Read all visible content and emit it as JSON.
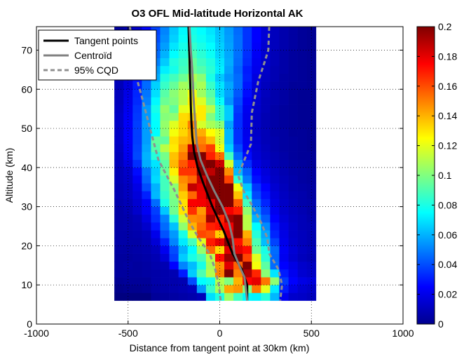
{
  "chart_data": {
    "type": "heatmap",
    "title": "O3 OFL Mid-latitude Horizontal AK",
    "xlabel": "Distance from tangent point at 30km (km)",
    "ylabel": "Altitude (km)",
    "xlim": [
      -1000,
      1000
    ],
    "ylim": [
      0,
      76
    ],
    "xticks": [
      -1000,
      -500,
      0,
      500,
      1000
    ],
    "yticks": [
      0,
      10,
      20,
      30,
      40,
      50,
      60,
      70
    ],
    "x_bin_edges": [
      -575,
      -525,
      -475,
      -425,
      -375,
      -325,
      -275,
      -225,
      -175,
      -125,
      -75,
      -25,
      25,
      75,
      125,
      175,
      225,
      275,
      325,
      375,
      425,
      475,
      525
    ],
    "y_bin_edges": [
      6,
      8,
      10,
      12,
      14,
      16,
      18,
      20,
      22,
      24,
      26,
      28,
      30,
      32,
      34,
      36,
      38,
      40,
      42,
      44,
      46,
      48,
      50,
      52,
      54,
      56,
      58,
      60,
      62,
      64,
      66,
      68,
      70,
      72,
      74,
      76
    ],
    "heatmap_note": "values are AK weights per (x bin, altitude bin), rows ordered from lowest altitude bin upward",
    "colorbar": {
      "colormap": "jet",
      "range": [
        0,
        0.2
      ],
      "ticks": [
        "0",
        "0.02",
        "0.04",
        "0.06",
        "0.08",
        "0.1",
        "0.12",
        "0.14",
        "0.16",
        "0.18",
        "0.2"
      ]
    },
    "legend": {
      "position": "top-left",
      "entries": [
        {
          "label": "Tangent points",
          "color": "#000000",
          "style": "solid"
        },
        {
          "label": "Centroïd",
          "color": "#808080",
          "style": "solid"
        },
        {
          "label": "95% CQD",
          "color": "#909090",
          "style": "dashed"
        }
      ]
    },
    "series": [
      {
        "name": "Tangent points",
        "x": [
          -170,
          -168,
          -165,
          -163,
          -160,
          -158,
          -155,
          -150,
          -140,
          -120,
          -90,
          -40,
          20,
          70,
          120,
          150,
          150
        ],
        "y": [
          76,
          72,
          68,
          64,
          60,
          56,
          52,
          48,
          44,
          40,
          36,
          30,
          24,
          18,
          14,
          10,
          6
        ]
      },
      {
        "name": "Centroïd",
        "x": [
          -165,
          -158,
          -150,
          -143,
          -135,
          -125,
          -105,
          -70,
          -30,
          15,
          50,
          70,
          80,
          115,
          135,
          140,
          150
        ],
        "y": [
          76,
          70,
          65,
          58,
          52,
          46,
          42,
          38,
          34,
          30,
          26,
          22,
          18,
          14,
          12,
          10,
          6
        ]
      },
      {
        "name": "95% CQD lower",
        "x": [
          -490,
          -475,
          -460,
          -425,
          -380,
          -335,
          -290,
          -245,
          -205,
          -165,
          -115,
          -55,
          -25,
          -5,
          5
        ],
        "y": [
          76,
          70,
          64,
          58,
          50,
          42,
          38,
          34,
          30,
          26,
          22,
          18,
          14,
          10,
          6
        ]
      },
      {
        "name": "95% CQD upper",
        "x": [
          270,
          265,
          245,
          210,
          175,
          170,
          100,
          130,
          180,
          225,
          260,
          270,
          320,
          340,
          330
        ],
        "y": [
          76,
          70,
          67,
          62,
          54,
          46,
          38,
          34,
          30,
          26,
          22,
          18,
          14,
          10,
          6
        ]
      }
    ],
    "heatmap_values": [
      [
        0.0,
        0.0,
        0.0,
        0.0,
        0.005,
        0.006,
        0.007,
        0.008,
        0.009,
        0.011,
        0.069,
        0.081,
        0.106,
        0.087,
        0.074,
        0.073,
        0.082,
        0.061,
        0.022,
        0.015,
        0.014,
        0.012
      ],
      [
        0.002,
        0.003,
        0.003,
        0.004,
        0.007,
        0.008,
        0.009,
        0.01,
        0.012,
        0.055,
        0.086,
        0.108,
        0.142,
        0.146,
        0.101,
        0.152,
        0.12,
        0.071,
        0.03,
        0.02,
        0.016,
        0.014
      ],
      [
        0.004,
        0.005,
        0.005,
        0.005,
        0.008,
        0.009,
        0.009,
        0.01,
        0.04,
        0.075,
        0.079,
        0.11,
        0.1,
        0.14,
        0.175,
        0.18,
        0.152,
        0.103,
        0.036,
        0.025,
        0.02,
        0.018
      ],
      [
        0.006,
        0.006,
        0.006,
        0.007,
        0.008,
        0.009,
        0.01,
        0.03,
        0.065,
        0.09,
        0.11,
        0.15,
        0.2,
        0.15,
        0.19,
        0.168,
        0.102,
        0.07,
        0.03,
        0.022,
        0.016,
        0.014
      ],
      [
        0.006,
        0.007,
        0.006,
        0.007,
        0.009,
        0.01,
        0.025,
        0.051,
        0.062,
        0.08,
        0.107,
        0.146,
        0.181,
        0.156,
        0.2,
        0.123,
        0.093,
        0.046,
        0.025,
        0.02,
        0.015,
        0.013
      ],
      [
        0.006,
        0.006,
        0.007,
        0.008,
        0.01,
        0.017,
        0.037,
        0.065,
        0.08,
        0.089,
        0.111,
        0.173,
        0.195,
        0.2,
        0.162,
        0.119,
        0.083,
        0.045,
        0.022,
        0.016,
        0.012,
        0.01
      ],
      [
        0.007,
        0.007,
        0.008,
        0.009,
        0.012,
        0.022,
        0.04,
        0.06,
        0.075,
        0.104,
        0.155,
        0.133,
        0.181,
        0.18,
        0.173,
        0.096,
        0.08,
        0.046,
        0.023,
        0.017,
        0.013,
        0.011
      ],
      [
        0.008,
        0.008,
        0.008,
        0.01,
        0.017,
        0.031,
        0.051,
        0.071,
        0.088,
        0.119,
        0.17,
        0.18,
        0.2,
        0.172,
        0.15,
        0.09,
        0.062,
        0.038,
        0.021,
        0.015,
        0.012,
        0.01
      ],
      [
        0.008,
        0.008,
        0.009,
        0.011,
        0.021,
        0.041,
        0.055,
        0.08,
        0.117,
        0.161,
        0.158,
        0.135,
        0.182,
        0.2,
        0.141,
        0.082,
        0.058,
        0.032,
        0.02,
        0.014,
        0.012,
        0.01
      ],
      [
        0.008,
        0.009,
        0.01,
        0.015,
        0.029,
        0.046,
        0.063,
        0.103,
        0.14,
        0.155,
        0.169,
        0.172,
        0.178,
        0.2,
        0.111,
        0.075,
        0.052,
        0.029,
        0.019,
        0.014,
        0.011,
        0.01
      ],
      [
        0.008,
        0.009,
        0.011,
        0.019,
        0.034,
        0.05,
        0.083,
        0.115,
        0.148,
        0.15,
        0.193,
        0.168,
        0.193,
        0.2,
        0.111,
        0.06,
        0.043,
        0.025,
        0.017,
        0.013,
        0.011,
        0.009
      ],
      [
        0.008,
        0.01,
        0.015,
        0.023,
        0.037,
        0.064,
        0.097,
        0.13,
        0.166,
        0.145,
        0.181,
        0.2,
        0.177,
        0.17,
        0.103,
        0.052,
        0.037,
        0.022,
        0.015,
        0.012,
        0.01,
        0.008
      ],
      [
        0.009,
        0.011,
        0.016,
        0.024,
        0.046,
        0.08,
        0.098,
        0.131,
        0.176,
        0.177,
        0.181,
        0.2,
        0.2,
        0.157,
        0.088,
        0.046,
        0.032,
        0.02,
        0.014,
        0.011,
        0.009,
        0.008
      ],
      [
        0.01,
        0.013,
        0.018,
        0.031,
        0.061,
        0.085,
        0.1,
        0.135,
        0.155,
        0.179,
        0.2,
        0.2,
        0.2,
        0.137,
        0.07,
        0.039,
        0.028,
        0.018,
        0.013,
        0.01,
        0.009,
        0.007
      ],
      [
        0.01,
        0.013,
        0.02,
        0.04,
        0.06,
        0.088,
        0.102,
        0.144,
        0.187,
        0.18,
        0.2,
        0.2,
        0.2,
        0.122,
        0.064,
        0.035,
        0.025,
        0.016,
        0.012,
        0.009,
        0.008,
        0.007
      ],
      [
        0.011,
        0.014,
        0.023,
        0.045,
        0.068,
        0.088,
        0.118,
        0.148,
        0.155,
        0.186,
        0.2,
        0.2,
        0.162,
        0.083,
        0.049,
        0.028,
        0.02,
        0.014,
        0.011,
        0.009,
        0.007,
        0.006
      ],
      [
        0.011,
        0.015,
        0.027,
        0.048,
        0.066,
        0.095,
        0.128,
        0.165,
        0.165,
        0.2,
        0.188,
        0.2,
        0.147,
        0.061,
        0.043,
        0.025,
        0.018,
        0.013,
        0.01,
        0.008,
        0.007,
        0.006
      ],
      [
        0.012,
        0.019,
        0.034,
        0.059,
        0.07,
        0.093,
        0.139,
        0.158,
        0.17,
        0.195,
        0.2,
        0.185,
        0.117,
        0.056,
        0.034,
        0.02,
        0.015,
        0.011,
        0.009,
        0.007,
        0.006,
        0.005
      ],
      [
        0.012,
        0.022,
        0.039,
        0.06,
        0.082,
        0.098,
        0.137,
        0.151,
        0.2,
        0.2,
        0.169,
        0.154,
        0.088,
        0.046,
        0.027,
        0.017,
        0.013,
        0.01,
        0.008,
        0.006,
        0.005,
        0.005
      ],
      [
        0.013,
        0.023,
        0.038,
        0.058,
        0.091,
        0.111,
        0.129,
        0.145,
        0.185,
        0.154,
        0.163,
        0.122,
        0.066,
        0.039,
        0.023,
        0.016,
        0.012,
        0.009,
        0.007,
        0.006,
        0.005,
        0.004
      ],
      [
        0.014,
        0.024,
        0.037,
        0.056,
        0.094,
        0.094,
        0.131,
        0.139,
        0.143,
        0.149,
        0.138,
        0.115,
        0.061,
        0.034,
        0.022,
        0.015,
        0.011,
        0.009,
        0.007,
        0.006,
        0.005,
        0.004
      ],
      [
        0.014,
        0.024,
        0.037,
        0.056,
        0.075,
        0.102,
        0.123,
        0.133,
        0.143,
        0.141,
        0.125,
        0.118,
        0.061,
        0.034,
        0.021,
        0.014,
        0.011,
        0.008,
        0.007,
        0.005,
        0.005,
        0.004
      ],
      [
        0.014,
        0.024,
        0.037,
        0.056,
        0.075,
        0.104,
        0.119,
        0.133,
        0.15,
        0.117,
        0.108,
        0.102,
        0.057,
        0.034,
        0.021,
        0.014,
        0.01,
        0.008,
        0.006,
        0.005,
        0.004,
        0.004
      ],
      [
        0.014,
        0.023,
        0.036,
        0.055,
        0.076,
        0.101,
        0.103,
        0.132,
        0.134,
        0.129,
        0.1,
        0.085,
        0.065,
        0.034,
        0.021,
        0.014,
        0.01,
        0.008,
        0.006,
        0.005,
        0.004,
        0.004
      ],
      [
        0.013,
        0.022,
        0.035,
        0.055,
        0.079,
        0.104,
        0.094,
        0.12,
        0.123,
        0.129,
        0.111,
        0.085,
        0.065,
        0.036,
        0.022,
        0.015,
        0.011,
        0.008,
        0.006,
        0.005,
        0.004,
        0.004
      ],
      [
        0.012,
        0.021,
        0.033,
        0.05,
        0.074,
        0.096,
        0.1,
        0.11,
        0.128,
        0.118,
        0.097,
        0.076,
        0.054,
        0.039,
        0.024,
        0.016,
        0.011,
        0.009,
        0.007,
        0.005,
        0.004,
        0.004
      ],
      [
        0.012,
        0.02,
        0.032,
        0.048,
        0.069,
        0.092,
        0.102,
        0.11,
        0.122,
        0.106,
        0.092,
        0.068,
        0.057,
        0.042,
        0.027,
        0.017,
        0.012,
        0.009,
        0.007,
        0.005,
        0.004,
        0.004
      ],
      [
        0.011,
        0.018,
        0.03,
        0.046,
        0.066,
        0.086,
        0.095,
        0.107,
        0.104,
        0.108,
        0.086,
        0.07,
        0.058,
        0.046,
        0.029,
        0.018,
        0.012,
        0.009,
        0.007,
        0.005,
        0.005,
        0.004
      ],
      [
        0.01,
        0.016,
        0.027,
        0.043,
        0.059,
        0.081,
        0.088,
        0.096,
        0.109,
        0.102,
        0.08,
        0.064,
        0.054,
        0.046,
        0.031,
        0.019,
        0.013,
        0.01,
        0.007,
        0.006,
        0.005,
        0.004
      ],
      [
        0.009,
        0.014,
        0.025,
        0.04,
        0.056,
        0.072,
        0.079,
        0.088,
        0.096,
        0.091,
        0.083,
        0.072,
        0.057,
        0.044,
        0.03,
        0.021,
        0.014,
        0.01,
        0.008,
        0.006,
        0.005,
        0.004
      ],
      [
        0.008,
        0.012,
        0.022,
        0.036,
        0.05,
        0.065,
        0.081,
        0.086,
        0.095,
        0.087,
        0.081,
        0.07,
        0.059,
        0.046,
        0.033,
        0.022,
        0.015,
        0.011,
        0.008,
        0.006,
        0.005,
        0.004
      ],
      [
        0.007,
        0.011,
        0.019,
        0.032,
        0.046,
        0.06,
        0.075,
        0.082,
        0.09,
        0.083,
        0.077,
        0.067,
        0.058,
        0.047,
        0.034,
        0.023,
        0.016,
        0.011,
        0.008,
        0.006,
        0.005,
        0.004
      ],
      [
        0.007,
        0.01,
        0.018,
        0.03,
        0.043,
        0.056,
        0.07,
        0.079,
        0.085,
        0.08,
        0.075,
        0.066,
        0.057,
        0.047,
        0.035,
        0.024,
        0.016,
        0.012,
        0.009,
        0.007,
        0.005,
        0.004
      ],
      [
        0.006,
        0.009,
        0.016,
        0.028,
        0.04,
        0.053,
        0.066,
        0.076,
        0.081,
        0.077,
        0.072,
        0.064,
        0.056,
        0.047,
        0.035,
        0.025,
        0.017,
        0.012,
        0.009,
        0.007,
        0.005,
        0.004
      ],
      [
        0.006,
        0.009,
        0.015,
        0.026,
        0.038,
        0.051,
        0.064,
        0.074,
        0.079,
        0.075,
        0.07,
        0.063,
        0.055,
        0.046,
        0.035,
        0.025,
        0.017,
        0.012,
        0.009,
        0.007,
        0.005,
        0.004
      ]
    ]
  }
}
